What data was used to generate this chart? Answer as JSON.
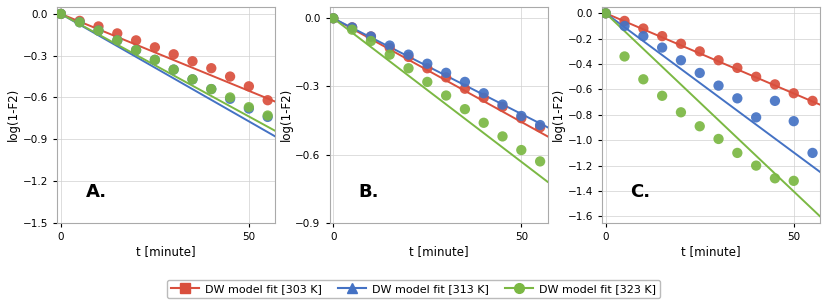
{
  "panels": [
    "A.",
    "B.",
    "C."
  ],
  "xlabel": "t [minute]",
  "ylabel": "log(1-F2)",
  "colors": {
    "303K": "#d94f3d",
    "313K": "#4472c4",
    "323K": "#7bb843"
  },
  "panel_A": {
    "ylim": [
      -1.5,
      0.05
    ],
    "yticks": [
      0,
      -0.3,
      -0.6,
      -0.9,
      -1.2,
      -1.5
    ],
    "xlim": [
      -1,
      57
    ],
    "xticks": [
      0,
      50
    ],
    "lines": {
      "303K": {
        "x0": 0,
        "x1": 57,
        "y0": 0.0,
        "y1": -0.63
      },
      "313K": {
        "x0": 0,
        "x1": 57,
        "y0": 0.0,
        "y1": -0.88
      },
      "323K": {
        "x0": 0,
        "x1": 57,
        "y0": 0.0,
        "y1": -0.84
      }
    },
    "scatter": {
      "303K": {
        "x": [
          0,
          5,
          10,
          15,
          20,
          25,
          30,
          35,
          40,
          45,
          50,
          55
        ],
        "y": [
          0,
          -0.05,
          -0.09,
          -0.14,
          -0.19,
          -0.24,
          -0.29,
          -0.34,
          -0.39,
          -0.45,
          -0.52,
          -0.62
        ]
      },
      "313K": {
        "x": [
          0,
          5,
          10,
          15,
          20,
          25,
          30,
          35,
          40,
          45,
          50,
          55
        ],
        "y": [
          0,
          -0.06,
          -0.12,
          -0.19,
          -0.26,
          -0.33,
          -0.4,
          -0.47,
          -0.54,
          -0.61,
          -0.68,
          -0.74
        ]
      },
      "323K": {
        "x": [
          0,
          5,
          10,
          15,
          20,
          25,
          30,
          35,
          40,
          45,
          50,
          55
        ],
        "y": [
          0,
          -0.06,
          -0.12,
          -0.19,
          -0.26,
          -0.33,
          -0.4,
          -0.47,
          -0.54,
          -0.6,
          -0.67,
          -0.73
        ]
      }
    }
  },
  "panel_B": {
    "ylim": [
      -0.9,
      0.05
    ],
    "yticks": [
      0,
      -0.3,
      -0.6,
      -0.9
    ],
    "xlim": [
      -1,
      57
    ],
    "xticks": [
      0,
      50
    ],
    "lines": {
      "303K": {
        "x0": 0,
        "x1": 57,
        "y0": 0.0,
        "y1": -0.52
      },
      "313K": {
        "x0": 0,
        "x1": 57,
        "y0": 0.0,
        "y1": -0.48
      },
      "323K": {
        "x0": 0,
        "x1": 57,
        "y0": 0.0,
        "y1": -0.72
      }
    },
    "scatter": {
      "303K": {
        "x": [
          0,
          5,
          10,
          15,
          20,
          25,
          30,
          35,
          40,
          45,
          50,
          55
        ],
        "y": [
          0,
          -0.04,
          -0.08,
          -0.13,
          -0.17,
          -0.22,
          -0.26,
          -0.31,
          -0.35,
          -0.39,
          -0.44,
          -0.48
        ]
      },
      "313K": {
        "x": [
          0,
          5,
          10,
          15,
          20,
          25,
          30,
          35,
          40,
          45,
          50,
          55
        ],
        "y": [
          0,
          -0.04,
          -0.08,
          -0.12,
          -0.16,
          -0.2,
          -0.24,
          -0.28,
          -0.33,
          -0.38,
          -0.43,
          -0.47
        ]
      },
      "323K": {
        "x": [
          0,
          5,
          10,
          15,
          20,
          25,
          30,
          35,
          40,
          45,
          50,
          55
        ],
        "y": [
          0,
          -0.05,
          -0.1,
          -0.16,
          -0.22,
          -0.28,
          -0.34,
          -0.4,
          -0.46,
          -0.52,
          -0.58,
          -0.63
        ]
      }
    }
  },
  "panel_C": {
    "ylim": [
      -1.65,
      0.05
    ],
    "yticks": [
      0,
      -0.2,
      -0.4,
      -0.6,
      -0.8,
      -1.0,
      -1.2,
      -1.4,
      -1.6
    ],
    "xlim": [
      -1,
      57
    ],
    "xticks": [
      0,
      50
    ],
    "lines": {
      "303K": {
        "x0": 0,
        "x1": 57,
        "y0": 0.0,
        "y1": -0.72
      },
      "313K": {
        "x0": 0,
        "x1": 57,
        "y0": 0.0,
        "y1": -1.25
      },
      "323K": {
        "x0": 0,
        "x1": 57,
        "y0": 0.0,
        "y1": -1.6
      }
    },
    "scatter": {
      "303K": {
        "x": [
          0,
          5,
          10,
          15,
          20,
          25,
          30,
          35,
          40,
          45,
          50,
          55
        ],
        "y": [
          0,
          -0.06,
          -0.12,
          -0.18,
          -0.24,
          -0.3,
          -0.37,
          -0.43,
          -0.5,
          -0.56,
          -0.63,
          -0.69
        ]
      },
      "313K": {
        "x": [
          0,
          5,
          10,
          15,
          20,
          25,
          30,
          35,
          40,
          45,
          50,
          55
        ],
        "y": [
          0,
          -0.1,
          -0.18,
          -0.27,
          -0.37,
          -0.47,
          -0.57,
          -0.67,
          -0.82,
          -0.69,
          -0.85,
          -1.1
        ]
      },
      "323K": {
        "x": [
          0,
          5,
          10,
          15,
          20,
          25,
          30,
          35,
          40,
          45,
          50
        ],
        "y": [
          0,
          -0.34,
          -0.52,
          -0.65,
          -0.78,
          -0.89,
          -0.99,
          -1.1,
          -1.2,
          -1.3,
          -1.32
        ]
      }
    }
  },
  "legend": {
    "303K": "DW model fit [303 K]",
    "313K": "DW model fit [313 K]",
    "323K": "DW model fit [323 K]"
  }
}
